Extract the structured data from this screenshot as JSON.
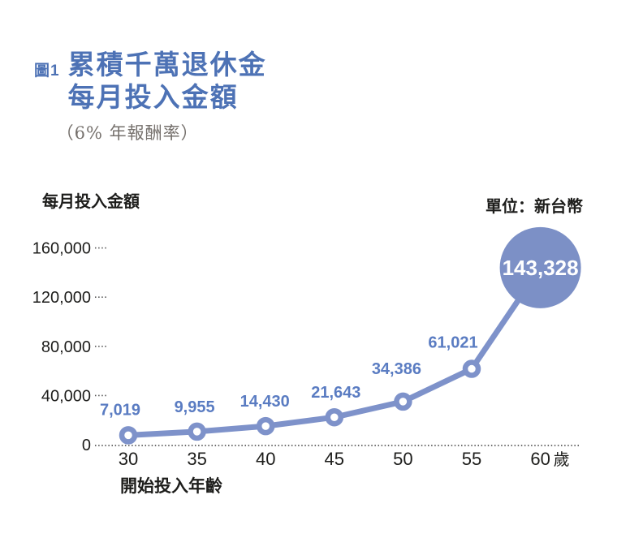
{
  "figure": {
    "tag": "圖1",
    "title_line1": "累積千萬退休金",
    "title_line2": "每月投入金額",
    "subtitle": "（6% 年報酬率）"
  },
  "chart_data": {
    "type": "line",
    "title": "累積千萬退休金 每月投入金額",
    "subtitle": "6% 年報酬率",
    "ylabel": "每月投入金額",
    "unit_label": "單位：新台幣",
    "xlabel": "開始投入年齡",
    "x_unit_suffix": "歲",
    "x": [
      30,
      35,
      40,
      45,
      50,
      55,
      60
    ],
    "x_tick_labels": [
      "30",
      "35",
      "40",
      "45",
      "50",
      "55",
      "60"
    ],
    "values": [
      7019,
      9955,
      14430,
      21643,
      34386,
      61021,
      143328
    ],
    "value_labels": [
      "7,019",
      "9,955",
      "14,430",
      "21,643",
      "34,386",
      "61,021",
      "143,328"
    ],
    "highlight_index": 6,
    "highlight_label": "143,328",
    "yticks": [
      0,
      40000,
      80000,
      120000,
      160000
    ],
    "ytick_labels": [
      "0",
      "40,000",
      "80,000",
      "120,000",
      "160,000"
    ],
    "ylim": [
      0,
      180000
    ],
    "xlim": [
      30,
      60
    ],
    "legend": "none",
    "grid": "dotted-zero-baseline",
    "colors": {
      "line": "#7e92ca",
      "marker_fill": "#ffffff",
      "data_label": "#5a7cc2",
      "title_blue": "#4d72b5",
      "axis_text": "#1d1d1b",
      "subtitle_gray": "#76716d",
      "baseline_dots": "#3c3c3c",
      "highlight_fill": "#7c90c6",
      "highlight_text": "#ffffff"
    }
  }
}
